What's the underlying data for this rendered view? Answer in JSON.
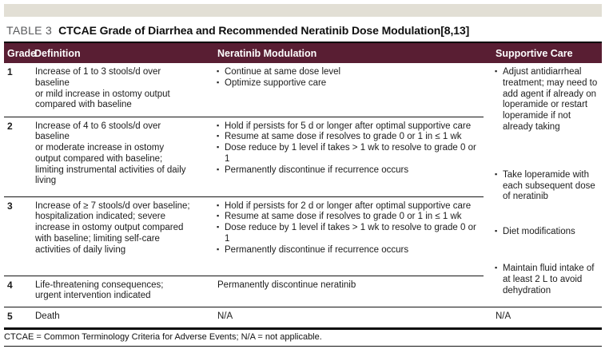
{
  "title": {
    "label": "TABLE 3",
    "text": "CTCAE Grade of Diarrhea and Recommended Neratinib Dose Modulation[8,13]"
  },
  "colors": {
    "header_bg": "#591e33",
    "top_bar": "#e2dfd5",
    "title_label_gray": "#595a5c",
    "rule_black": "#141414"
  },
  "table": {
    "headers": [
      "Grade",
      "Definition",
      "Neratinib Modulation",
      "Supportive Care"
    ],
    "rows": [
      {
        "grade": "1",
        "definition": [
          "Increase of 1 to 3 stools/d over baseline",
          "or mild increase in ostomy output compared with baseline"
        ],
        "modulation": [
          "Continue at same dose level",
          "Optimize supportive care"
        ]
      },
      {
        "grade": "2",
        "definition": [
          "Increase of 4 to 6 stools/d over baseline",
          "or moderate increase in ostomy output compared with baseline; limiting instrumental activities of daily living"
        ],
        "modulation": [
          "Hold if persists for 5 d or longer after optimal supportive care",
          "Resume at same dose if resolves to grade 0 or 1 in ≤ 1 wk",
          "Dose reduce by 1 level if takes > 1 wk to resolve to grade 0 or 1",
          "Permanently discontinue if recurrence occurs"
        ]
      },
      {
        "grade": "3",
        "definition": [
          "Increase of ≥ 7 stools/d over baseline; hospitalization indicated; severe increase in ostomy output compared with baseline; limiting self-care activities of daily living"
        ],
        "modulation": [
          "Hold if persists for 2 d or longer after optimal supportive care",
          "Resume at same dose if resolves to grade 0 or 1 in ≤ 1 wk",
          "Dose reduce by 1 level if takes > 1 wk to resolve to grade 0 or 1",
          "Permanently discontinue if recurrence occurs"
        ]
      },
      {
        "grade": "4",
        "definition": [
          "Life-threatening consequences; urgent intervention indicated"
        ],
        "modulation_plain": "Permanently discontinue neratinib"
      },
      {
        "grade": "5",
        "definition": [
          "Death"
        ],
        "modulation_plain": "N/A"
      }
    ],
    "supportive_care": {
      "bullets": [
        "Adjust antidiarrheal treatment; may need to add agent if already on loperamide or restart loperamide if not already taking",
        "Take loperamide with each subsequent dose of neratinib",
        "Diet modifications",
        "Maintain fluid intake of at least 2 L to avoid dehydration"
      ],
      "na": "N/A"
    }
  },
  "footnote": "CTCAE = Common Terminology Criteria for Adverse Events; N/A = not applicable."
}
